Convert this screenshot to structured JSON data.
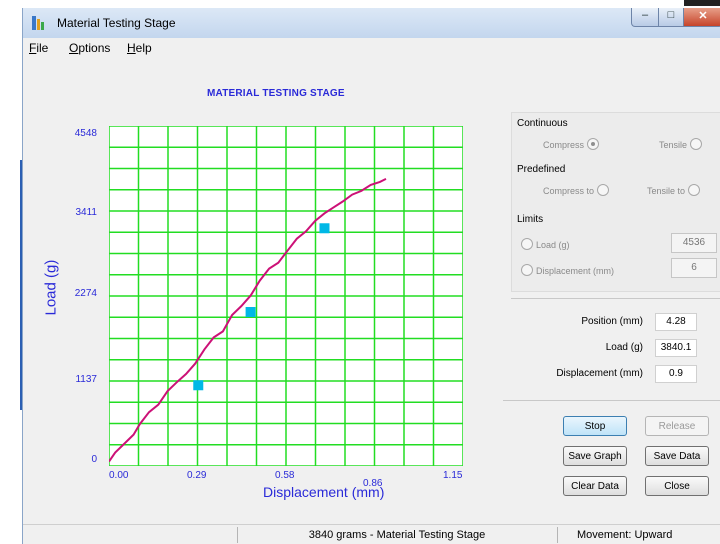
{
  "window": {
    "title": "Material Testing Stage"
  },
  "menu": [
    {
      "label": "File",
      "accel": "F",
      "rest": "ile"
    },
    {
      "label": "Options",
      "accel": "O",
      "rest": "ptions"
    },
    {
      "label": "Help",
      "accel": "H",
      "rest": "elp"
    }
  ],
  "chart_data": {
    "type": "line",
    "title": "MATERIAL TESTING STAGE",
    "xlabel": "Displacement (mm)",
    "ylabel": "Load (g)",
    "xlim": [
      0,
      1.15
    ],
    "ylim": [
      0,
      4548
    ],
    "x_ticks": [
      "0.00",
      "0.29",
      "0.58",
      "0.86",
      "1.15"
    ],
    "y_ticks": [
      "0",
      "1137",
      "2274",
      "3411",
      "4548"
    ],
    "grid": true,
    "series": [
      {
        "color": "#cc1177",
        "x": [
          0,
          0.02,
          0.05,
          0.08,
          0.1,
          0.13,
          0.16,
          0.19,
          0.22,
          0.25,
          0.28,
          0.31,
          0.34,
          0.37,
          0.4,
          0.43,
          0.46,
          0.49,
          0.52,
          0.55,
          0.58,
          0.61,
          0.64,
          0.67,
          0.7,
          0.73,
          0.76,
          0.79,
          0.82,
          0.85,
          0.88,
          0.9
        ],
        "y": [
          60,
          180,
          300,
          420,
          560,
          720,
          820,
          1000,
          1120,
          1230,
          1370,
          1560,
          1720,
          1800,
          2020,
          2140,
          2280,
          2480,
          2640,
          2720,
          2880,
          3040,
          3140,
          3280,
          3380,
          3460,
          3540,
          3630,
          3680,
          3760,
          3800,
          3840
        ]
      }
    ],
    "markers": {
      "color": "#00b8e6",
      "x": [
        0.29,
        0.46,
        0.7
      ],
      "y": [
        1080,
        2060,
        3180
      ]
    }
  },
  "controls": {
    "continuous": {
      "heading": "Continuous",
      "compress": "Compress",
      "tensile": "Tensile",
      "selected": "compress"
    },
    "predefined": {
      "heading": "Predefined",
      "compress_to": "Compress to",
      "tensile_to": "Tensile to"
    },
    "limits": {
      "heading": "Limits",
      "load_label": "Load (g)",
      "load_value": "4536",
      "disp_label": "Displacement (mm)",
      "disp_value": "6"
    },
    "readouts": {
      "position_label": "Position (mm)",
      "position_value": "4.28",
      "load_label": "Load (g)",
      "load_value": "3840.1",
      "disp_label": "Displacement (mm)",
      "disp_value": "0.9"
    },
    "buttons": {
      "stop": "Stop",
      "release": "Release",
      "save_graph": "Save Graph",
      "save_data": "Save Data",
      "clear_data": "Clear Data",
      "close": "Close"
    }
  },
  "status": {
    "message": "3840 grams - Material Testing Stage",
    "movement": "Movement: Upward"
  }
}
